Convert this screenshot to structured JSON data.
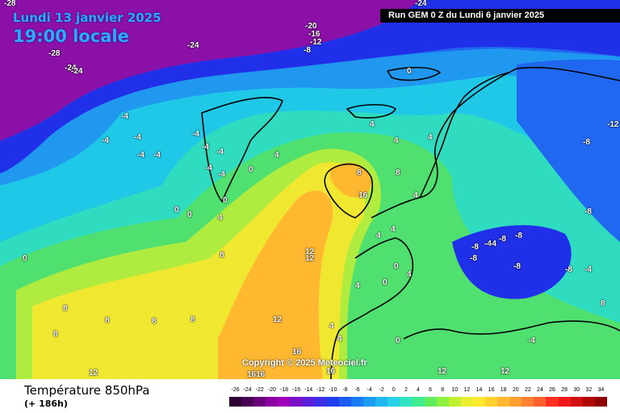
{
  "header": {
    "date": "Lundi 13 janvier 2025",
    "time": "19:00 locale",
    "run": "Run GEM 0 Z du Lundi 6 janvier 2025"
  },
  "copyright": "Copyright © 2025 Meteociel.fr",
  "parameter": {
    "title": "Température 850hPa",
    "subtitle": "(+ 186h)"
  },
  "scale": {
    "labels": [
      "-26",
      "-24",
      "-22",
      "-20",
      "-18",
      "-16",
      "-14",
      "-12",
      "-10",
      "-8",
      "-6",
      "-4",
      "-2",
      "0",
      "2",
      "4",
      "6",
      "8",
      "10",
      "12",
      "14",
      "16",
      "18",
      "20",
      "22",
      "24",
      "26",
      "28",
      "30",
      "32",
      "34"
    ],
    "colors": [
      "#2a0030",
      "#4a0055",
      "#6a007a",
      "#8a00a0",
      "#a000b8",
      "#7a10c8",
      "#5a20d8",
      "#3a30e8",
      "#2040f0",
      "#1c5cf4",
      "#1a7cf4",
      "#1c9cf0",
      "#20b8f0",
      "#28d0e8",
      "#30e4c0",
      "#40ec90",
      "#60ee60",
      "#90f040",
      "#c0f030",
      "#e8f030",
      "#ffe830",
      "#ffd030",
      "#ffb830",
      "#ffa030",
      "#ff8030",
      "#ff6030",
      "#ff3020",
      "#f01818",
      "#d01010",
      "#b00808",
      "#900000"
    ]
  },
  "map": {
    "regions": [
      {
        "name": "polar-vortex",
        "color": "#8a10a8"
      },
      {
        "name": "deep-blue",
        "color": "#2030e8"
      },
      {
        "name": "mid-blue",
        "color": "#2068f0"
      },
      {
        "name": "light-blue",
        "color": "#2098f0"
      },
      {
        "name": "cyan",
        "color": "#20c8e8"
      },
      {
        "name": "teal",
        "color": "#30dcc0"
      },
      {
        "name": "green",
        "color": "#50e070"
      },
      {
        "name": "yellow-green",
        "color": "#b0ec40"
      },
      {
        "name": "yellow",
        "color": "#f0e830"
      },
      {
        "name": "orange",
        "color": "#ffb830"
      }
    ],
    "isotherm_labels": [
      {
        "text": "-28"
      },
      {
        "text": "-28"
      },
      {
        "text": "-24"
      },
      {
        "text": "-24"
      },
      {
        "text": "-24"
      },
      {
        "text": "-20"
      },
      {
        "text": "-16"
      },
      {
        "text": "-12"
      },
      {
        "text": "-8"
      },
      {
        "text": "-24"
      },
      {
        "text": "-4"
      },
      {
        "text": "-4"
      },
      {
        "text": "-4"
      },
      {
        "text": "-4"
      },
      {
        "text": "-4"
      },
      {
        "text": "-4"
      },
      {
        "text": "-4"
      },
      {
        "text": "-4"
      },
      {
        "text": "-4"
      },
      {
        "text": "-4"
      },
      {
        "text": "0"
      },
      {
        "text": "0"
      },
      {
        "text": "0"
      },
      {
        "text": "0"
      },
      {
        "text": "0"
      },
      {
        "text": "4"
      },
      {
        "text": "4"
      },
      {
        "text": "4"
      },
      {
        "text": "4"
      },
      {
        "text": "4"
      },
      {
        "text": "8"
      },
      {
        "text": "8"
      },
      {
        "text": "8"
      },
      {
        "text": "8"
      },
      {
        "text": "8"
      },
      {
        "text": "12"
      },
      {
        "text": "12"
      },
      {
        "text": "12"
      },
      {
        "text": "16"
      },
      {
        "text": "16"
      },
      {
        "text": "16"
      },
      {
        "text": "1616"
      },
      {
        "text": "-8"
      },
      {
        "text": "-8"
      },
      {
        "text": "-8"
      },
      {
        "text": "-8"
      },
      {
        "text": "-8"
      },
      {
        "text": "-12"
      },
      {
        "text": "-4"
      },
      {
        "text": "4"
      },
      {
        "text": "4"
      },
      {
        "text": "0"
      },
      {
        "text": "0"
      },
      {
        "text": "4"
      },
      {
        "text": "4"
      },
      {
        "text": "4"
      },
      {
        "text": "8"
      },
      {
        "text": "8"
      },
      {
        "text": "12"
      },
      {
        "text": "0"
      },
      {
        "text": "-4"
      },
      {
        "text": "8"
      },
      {
        "text": "-8"
      },
      {
        "text": "-8"
      },
      {
        "text": "-8"
      },
      {
        "text": "-4"
      },
      {
        "text": "-4"
      },
      {
        "text": "12"
      },
      {
        "text": "12"
      },
      {
        "text": "8"
      },
      {
        "text": "4"
      },
      {
        "text": "4"
      },
      {
        "text": "0"
      }
    ]
  }
}
